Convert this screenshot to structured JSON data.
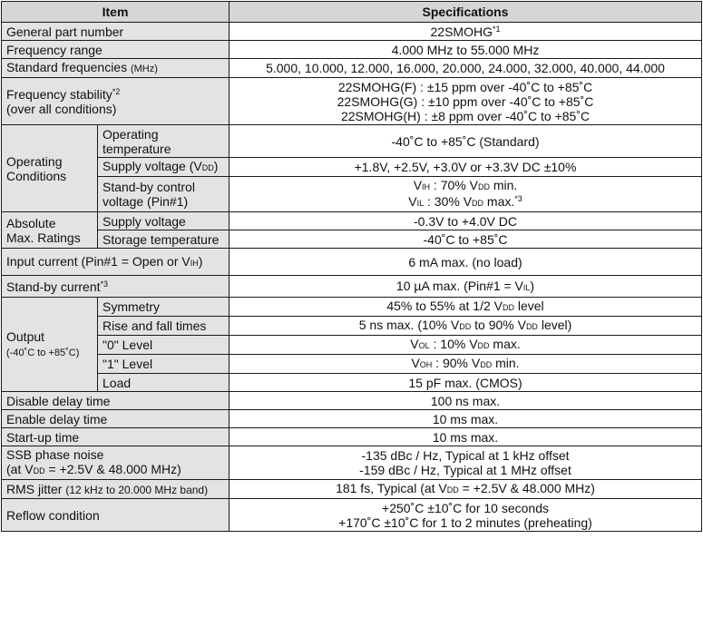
{
  "headers": {
    "item": "Item",
    "specifications": "Specifications"
  },
  "rows": {
    "general_part": {
      "label": "General part number",
      "value": "22SMOHG",
      "value_sup": "*1"
    },
    "freq_range": {
      "label": "Frequency range",
      "value": "4.000 MHz to 55.000 MHz"
    },
    "std_freq": {
      "label": "Standard frequencies",
      "label_unit": "(MHz)",
      "value": "5.000, 10.000, 12.000, 16.000, 20.000, 24.000, 32.000, 40.000, 44.000"
    },
    "freq_stab": {
      "label": "Frequency stability",
      "label_sup": "*2",
      "label2": "(over all conditions)",
      "lines": [
        "22SMOHG(F) : ±15 ppm over -40˚C to +85˚C",
        "22SMOHG(G) : ±10 ppm over -40˚C to +85˚C",
        "22SMOHG(H) :  ±8 ppm over -40˚C to +85˚C"
      ]
    },
    "operating": {
      "label1": "Operating",
      "label2": "Conditions",
      "op_temp": {
        "sub1": "Operating",
        "sub2": "temperature",
        "value": "-40˚C to +85˚C (Standard)"
      },
      "supply": {
        "sub_pre": "Supply voltage (V",
        "sub_sub": "DD",
        "sub_post": ")",
        "value": "+1.8V, +2.5V, +3.0V or +3.3V DC ±10%"
      },
      "standby": {
        "sub1": "Stand-by control",
        "sub2": "voltage (Pin#1)",
        "v1_a": "V",
        "v1_sub": "IH",
        "v1_b": " : 70% V",
        "v1_sub2": "DD",
        "v1_c": " min.",
        "v2_a": "V",
        "v2_sub": "IL",
        "v2_b": " : 30% V",
        "v2_sub2": "DD",
        "v2_c": " max.",
        "v2_sup": "*3"
      }
    },
    "absolute": {
      "label1": "Absolute",
      "label2": "Max. Ratings",
      "supply": {
        "sub": "Supply voltage",
        "value": "-0.3V to +4.0V DC"
      },
      "storage": {
        "sub": "Storage temperature",
        "value": "-40˚C to +85˚C"
      }
    },
    "input_current": {
      "label_pre": "Input current (Pin#1 = Open or V",
      "label_sub": "IH",
      "label_post": ")",
      "value": "6 mA max. (no load)"
    },
    "standby_current": {
      "label": "Stand-by current",
      "label_sup": "*3",
      "value_pre": "10 µA max. (Pin#1 = V",
      "value_sub": "IL",
      "value_post": ")"
    },
    "output": {
      "label1": "Output",
      "label2": "(-40˚C to +85˚C)",
      "symmetry": {
        "sub": "Symmetry",
        "v_pre": "45% to 55% at 1/2 V",
        "v_sub": "DD",
        "v_post": " level"
      },
      "rise_fall": {
        "sub": "Rise and fall times",
        "v_pre": "5 ns max. (10% V",
        "v_sub": "DD",
        "v_mid": " to 90% V",
        "v_sub2": "DD",
        "v_post": " level)"
      },
      "level0": {
        "sub": "\"0\" Level",
        "v_a": "V",
        "v_sub": "OL",
        "v_b": " : 10% V",
        "v_sub2": "DD",
        "v_c": " max."
      },
      "level1": {
        "sub": "\"1\" Level",
        "v_a": "V",
        "v_sub": "OH",
        "v_b": " : 90% V",
        "v_sub2": "DD",
        "v_c": " min."
      },
      "load": {
        "sub": "Load",
        "value": "15 pF max. (CMOS)"
      }
    },
    "disable_delay": {
      "label": "Disable delay time",
      "value": "100 ns max."
    },
    "enable_delay": {
      "label": "Enable delay time",
      "value": "10 ms max."
    },
    "startup": {
      "label": "Start-up time",
      "value": "10 ms max."
    },
    "ssb": {
      "label1": "SSB phase noise",
      "label2_pre": "(at V",
      "label2_sub": "DD",
      "label2_post": " = +2.5V & 48.000 MHz)",
      "line1": "-135 dBc / Hz, Typical at 1 kHz offset",
      "line2": "-159 dBc / Hz, Typical at 1 MHz offset"
    },
    "rms": {
      "label": "RMS jitter",
      "label_small": "(12 kHz to 20.000 MHz band)",
      "v_pre": "181 fs, Typical (at V",
      "v_sub": "DD",
      "v_post": " = +2.5V & 48.000 MHz)"
    },
    "reflow": {
      "label": "Reflow condition",
      "line1": "+250˚C ±10˚C for 10 seconds",
      "line2": "+170˚C ±10˚C for 1 to 2 minutes (preheating)"
    }
  }
}
